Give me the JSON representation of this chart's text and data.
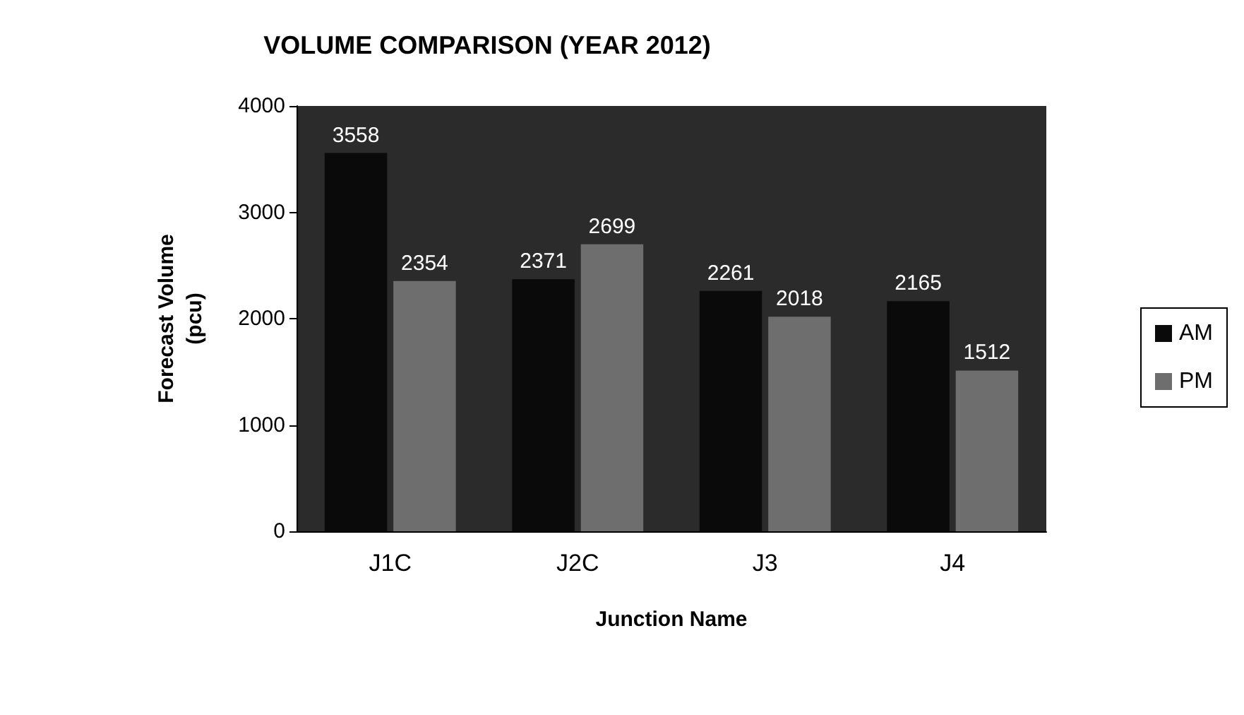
{
  "chart_data": {
    "type": "bar",
    "title": "VOLUME COMPARISON (YEAR 2012)",
    "xlabel": "Junction Name",
    "ylabel": "Forecast Volume\n(pcu)",
    "categories": [
      "J1C",
      "J2C",
      "J3",
      "J4"
    ],
    "series": [
      {
        "name": "AM",
        "color": "#0a0a0a",
        "values": [
          3558,
          2371,
          2261,
          2165
        ]
      },
      {
        "name": "PM",
        "color": "#6e6e6e",
        "values": [
          2354,
          2699,
          2018,
          1512
        ]
      }
    ],
    "ylim": [
      0,
      4000
    ],
    "yticks": [
      0,
      1000,
      2000,
      3000,
      4000
    ],
    "grid": false,
    "legend": "right",
    "data_labels": true
  }
}
